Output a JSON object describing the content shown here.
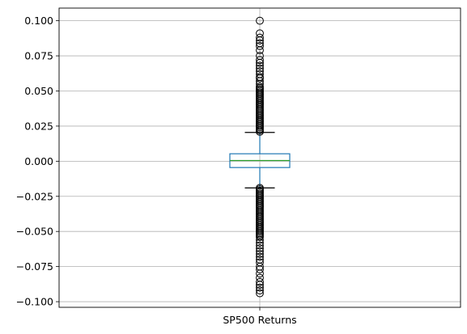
{
  "chart_data": {
    "type": "box",
    "title": "",
    "xlabel": "",
    "ylabel": "",
    "ylim": [
      -0.104,
      0.109
    ],
    "yticks": [
      -0.1,
      -0.075,
      -0.05,
      -0.025,
      0.0,
      0.025,
      0.05,
      0.075,
      0.1
    ],
    "ytick_labels": [
      "−0.100",
      "−0.075",
      "−0.050",
      "−0.025",
      "0.000",
      "0.025",
      "0.050",
      "0.075",
      "0.100"
    ],
    "grid": true,
    "categories": [
      "SP500 Returns"
    ],
    "boxes": [
      {
        "name": "SP500 Returns",
        "whisker_low": -0.019,
        "q1": -0.0045,
        "median": 0.0005,
        "q3": 0.0053,
        "whisker_high": 0.0205,
        "outliers_high": [
          0.021,
          0.022,
          0.023,
          0.024,
          0.025,
          0.026,
          0.027,
          0.028,
          0.029,
          0.03,
          0.031,
          0.032,
          0.033,
          0.034,
          0.035,
          0.036,
          0.037,
          0.038,
          0.039,
          0.04,
          0.041,
          0.042,
          0.043,
          0.044,
          0.045,
          0.046,
          0.047,
          0.048,
          0.049,
          0.05,
          0.051,
          0.052,
          0.053,
          0.055,
          0.057,
          0.059,
          0.06,
          0.062,
          0.064,
          0.066,
          0.068,
          0.07,
          0.072,
          0.075,
          0.079,
          0.082,
          0.084,
          0.086,
          0.088,
          0.091,
          0.1
        ],
        "outliers_low": [
          -0.019,
          -0.02,
          -0.021,
          -0.022,
          -0.023,
          -0.024,
          -0.025,
          -0.026,
          -0.027,
          -0.028,
          -0.029,
          -0.03,
          -0.031,
          -0.032,
          -0.033,
          -0.034,
          -0.035,
          -0.036,
          -0.037,
          -0.038,
          -0.039,
          -0.04,
          -0.041,
          -0.042,
          -0.043,
          -0.044,
          -0.045,
          -0.046,
          -0.047,
          -0.048,
          -0.049,
          -0.05,
          -0.051,
          -0.052,
          -0.053,
          -0.054,
          -0.056,
          -0.058,
          -0.06,
          -0.062,
          -0.064,
          -0.066,
          -0.068,
          -0.07,
          -0.072,
          -0.075,
          -0.077,
          -0.08,
          -0.083,
          -0.086,
          -0.088,
          -0.09,
          -0.092,
          -0.094
        ]
      }
    ],
    "colors": {
      "box": "#1f77b4",
      "median": "#2ca02c",
      "whisker": "#1f77b4",
      "cap": "#000000",
      "flier": "#000000",
      "grid": "#b0b0b0",
      "axes": "#000000"
    }
  }
}
